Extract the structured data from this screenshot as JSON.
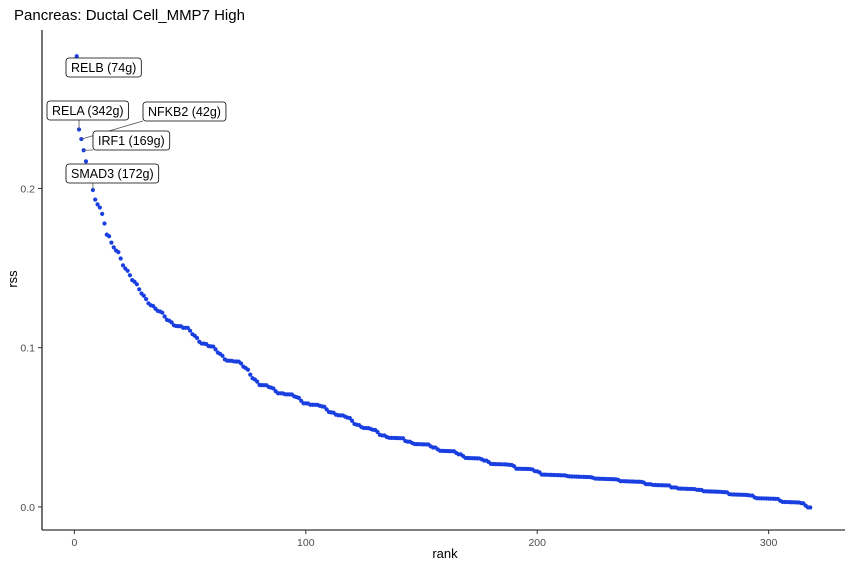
{
  "chart_data": {
    "type": "scatter",
    "title": "Pancreas: Ductal Cell_MMP7 High",
    "xlabel": "rank",
    "ylabel": "rss",
    "xlim": [
      -14,
      333
    ],
    "ylim": [
      -0.0145,
      0.2995
    ],
    "xticks": [
      0,
      100,
      200,
      300
    ],
    "xtick_labels": [
      "0",
      "100",
      "200",
      "300"
    ],
    "yticks": [
      0.0,
      0.1,
      0.2
    ],
    "ytick_labels": [
      "0.0",
      "0.1",
      "0.2"
    ],
    "grid": false,
    "legend": "none",
    "point_color": "#1a3fe0",
    "n_points": 318,
    "leading_points": {
      "x": [
        1,
        2,
        3,
        4,
        5,
        6,
        7,
        8,
        9,
        10,
        11,
        12,
        13,
        14,
        15,
        16,
        17,
        18,
        19,
        20
      ],
      "y": [
        0.283,
        0.237,
        0.231,
        0.224,
        0.217,
        0.214,
        0.205,
        0.199,
        0.193,
        0.19,
        0.188,
        0.184,
        0.178,
        0.171,
        0.17,
        0.166,
        0.163,
        0.161,
        0.16,
        0.156
      ]
    },
    "curve_knots": {
      "x": [
        20,
        25,
        30,
        35,
        40,
        45,
        50,
        55,
        60,
        65,
        70,
        75,
        80,
        90,
        100,
        110,
        120,
        130,
        140,
        150,
        160,
        175,
        190,
        200,
        220,
        240,
        260,
        280,
        300,
        310,
        318
      ],
      "y": [
        0.156,
        0.142,
        0.133,
        0.124,
        0.118,
        0.114,
        0.11,
        0.104,
        0.099,
        0.094,
        0.091,
        0.086,
        0.077,
        0.072,
        0.066,
        0.061,
        0.054,
        0.047,
        0.043,
        0.04,
        0.036,
        0.03,
        0.026,
        0.022,
        0.02,
        0.017,
        0.013,
        0.01,
        0.006,
        0.004,
        0.001
      ]
    },
    "annotations": [
      {
        "label": "RELB (74g)",
        "x": 1,
        "y": 0.283
      },
      {
        "label": "RELA (342g)",
        "x": 2,
        "y": 0.237
      },
      {
        "label": "NFKB2 (42g)",
        "x": 3,
        "y": 0.231
      },
      {
        "label": "IRF1 (169g)",
        "x": 4,
        "y": 0.224
      },
      {
        "label": "SMAD3 (172g)",
        "x": 8,
        "y": 0.199
      }
    ]
  }
}
